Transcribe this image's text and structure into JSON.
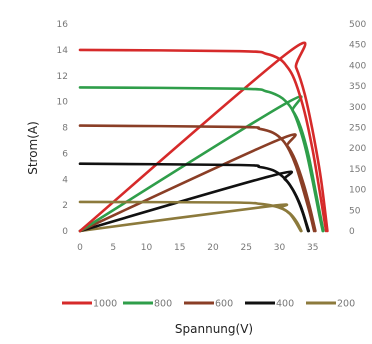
{
  "chart_data": {
    "type": "line",
    "xlabel": "Spannung(V)",
    "ylabel": "Strom(A)",
    "xlim": [
      0,
      40
    ],
    "ylim": [
      0,
      16
    ],
    "y2lim": [
      0,
      500
    ],
    "x_ticks": [
      0,
      5,
      10,
      15,
      20,
      25,
      30,
      35
    ],
    "y_ticks": [
      0,
      2,
      4,
      6,
      8,
      10,
      12,
      14,
      16
    ],
    "y2_ticks": [
      0,
      50,
      100,
      150,
      200,
      250,
      300,
      350,
      400,
      450,
      500
    ],
    "grid": false,
    "legend_position": "bottom",
    "series": [
      {
        "name": "1000",
        "color": "#d62a2a",
        "current": [
          [
            0,
            14.0
          ],
          [
            24,
            13.9
          ],
          [
            28,
            13.7
          ],
          [
            30,
            13.3
          ],
          [
            31,
            12.8
          ],
          [
            32,
            12.0
          ],
          [
            33,
            10.6
          ],
          [
            34,
            8.7
          ],
          [
            35,
            6.2
          ],
          [
            36,
            3.2
          ],
          [
            37,
            0.0
          ]
        ],
        "power": [
          [
            0,
            0
          ],
          [
            31.2,
            430
          ],
          [
            32.5,
            395
          ],
          [
            33.8,
            330
          ],
          [
            35,
            240
          ],
          [
            36.2,
            130
          ],
          [
            37.2,
            0
          ]
        ]
      },
      {
        "name": "800",
        "color": "#2f9e4a",
        "current": [
          [
            0,
            11.1
          ],
          [
            24,
            11.0
          ],
          [
            28,
            10.8
          ],
          [
            30,
            10.4
          ],
          [
            31,
            10.0
          ],
          [
            32,
            9.3
          ],
          [
            33,
            8.0
          ],
          [
            34,
            6.2
          ],
          [
            35,
            3.8
          ],
          [
            36,
            1.2
          ],
          [
            36.5,
            0.0
          ]
        ],
        "power": [
          [
            0,
            0
          ],
          [
            30.6,
            305
          ],
          [
            32,
            290
          ],
          [
            33.2,
            250
          ],
          [
            34.4,
            180
          ],
          [
            35.5,
            90
          ],
          [
            36.6,
            0
          ]
        ]
      },
      {
        "name": "600",
        "color": "#8a3e26",
        "current": [
          [
            0,
            8.15
          ],
          [
            24,
            8.05
          ],
          [
            27,
            7.9
          ],
          [
            29,
            7.6
          ],
          [
            30.5,
            7.0
          ],
          [
            31.5,
            6.2
          ],
          [
            32.5,
            5.0
          ],
          [
            33.5,
            3.3
          ],
          [
            34.5,
            1.5
          ],
          [
            35.2,
            0.0
          ]
        ],
        "power": [
          [
            0,
            0
          ],
          [
            29.8,
            220
          ],
          [
            31.2,
            205
          ],
          [
            32.4,
            170
          ],
          [
            33.6,
            115
          ],
          [
            34.6,
            55
          ],
          [
            35.4,
            0
          ]
        ]
      },
      {
        "name": "400",
        "color": "#111111",
        "current": [
          [
            0,
            5.2
          ],
          [
            24,
            5.1
          ],
          [
            27,
            4.95
          ],
          [
            29,
            4.7
          ],
          [
            30.5,
            4.2
          ],
          [
            31.5,
            3.6
          ],
          [
            32.5,
            2.7
          ],
          [
            33.5,
            1.4
          ],
          [
            34.3,
            0.0
          ]
        ],
        "power": [
          [
            0,
            0
          ],
          [
            29.2,
            135
          ],
          [
            30.8,
            125
          ],
          [
            32,
            100
          ],
          [
            33.2,
            60
          ],
          [
            34.4,
            0
          ]
        ]
      },
      {
        "name": "200",
        "color": "#8c7a3c",
        "current": [
          [
            0,
            2.25
          ],
          [
            23,
            2.2
          ],
          [
            27,
            2.1
          ],
          [
            29,
            1.95
          ],
          [
            30.5,
            1.7
          ],
          [
            31.5,
            1.35
          ],
          [
            32.3,
            0.8
          ],
          [
            33.2,
            0.0
          ]
        ],
        "power": [
          [
            0,
            0
          ],
          [
            28.5,
            60
          ],
          [
            30.2,
            56
          ],
          [
            31.6,
            42
          ],
          [
            32.6,
            22
          ],
          [
            33.3,
            0
          ]
        ]
      }
    ]
  }
}
